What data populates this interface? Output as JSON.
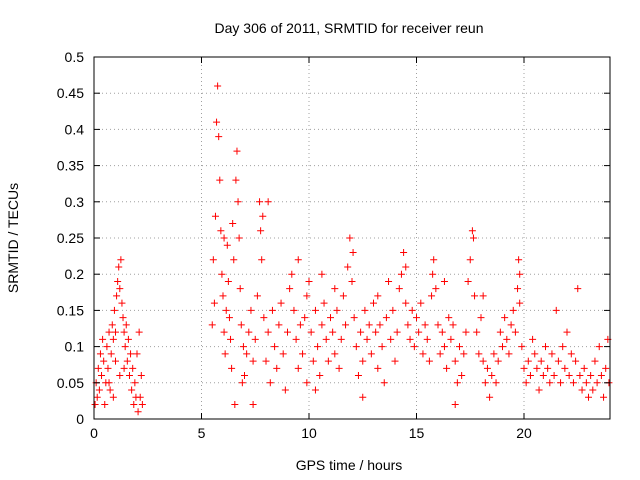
{
  "chart_data": {
    "type": "scatter",
    "title": "Day 306 of 2011, SRMTID for receiver reun",
    "xlabel": "GPS time / hours",
    "ylabel": "SRMTID / TECUs",
    "xlim": [
      0,
      24
    ],
    "ylim": [
      0,
      0.5
    ],
    "xticks": [
      0,
      5,
      10,
      15,
      20
    ],
    "xtick_labels": [
      "0",
      "5",
      "10",
      "15",
      "20"
    ],
    "yticks": [
      0,
      0.05,
      0.1,
      0.15,
      0.2,
      0.25,
      0.3,
      0.35,
      0.4,
      0.45,
      0.5
    ],
    "ytick_labels": [
      "0",
      "0.05",
      "0.1",
      "0.15",
      "0.2",
      "0.25",
      "0.3",
      "0.35",
      "0.4",
      "0.45",
      "0.5"
    ],
    "grid": true,
    "marker": "+",
    "marker_color": "#ff0000",
    "series": [
      {
        "name": "SRMTID",
        "points": [
          [
            0.05,
            0.02
          ],
          [
            0.1,
            0.05
          ],
          [
            0.15,
            0.03
          ],
          [
            0.2,
            0.07
          ],
          [
            0.25,
            0.04
          ],
          [
            0.3,
            0.09
          ],
          [
            0.35,
            0.06
          ],
          [
            0.4,
            0.11
          ],
          [
            0.45,
            0.08
          ],
          [
            0.5,
            0.02
          ],
          [
            0.55,
            0.05
          ],
          [
            0.6,
            0.1
          ],
          [
            0.65,
            0.07
          ],
          [
            0.7,
            0.12
          ],
          [
            0.75,
            0.04
          ],
          [
            0.8,
            0.09
          ],
          [
            0.85,
            0.13
          ],
          [
            0.9,
            0.11
          ],
          [
            0.95,
            0.15
          ],
          [
            1.0,
            0.12
          ],
          [
            1.05,
            0.17
          ],
          [
            1.1,
            0.19
          ],
          [
            1.15,
            0.21
          ],
          [
            1.2,
            0.18
          ],
          [
            1.25,
            0.22
          ],
          [
            1.3,
            0.16
          ],
          [
            1.35,
            0.14
          ],
          [
            1.4,
            0.12
          ],
          [
            1.45,
            0.1
          ],
          [
            1.5,
            0.13
          ],
          [
            1.55,
            0.08
          ],
          [
            1.6,
            0.11
          ],
          [
            1.65,
            0.06
          ],
          [
            1.7,
            0.09
          ],
          [
            1.75,
            0.04
          ],
          [
            1.8,
            0.07
          ],
          [
            1.85,
            0.02
          ],
          [
            1.9,
            0.05
          ],
          [
            1.95,
            0.03
          ],
          [
            2.0,
            0.09
          ],
          [
            2.05,
            0.01
          ],
          [
            2.1,
            0.12
          ],
          [
            2.15,
            0.03
          ],
          [
            2.2,
            0.06
          ],
          [
            2.25,
            0.02
          ],
          [
            1.0,
            0.08
          ],
          [
            1.2,
            0.06
          ],
          [
            0.9,
            0.03
          ],
          [
            0.7,
            0.05
          ],
          [
            1.4,
            0.07
          ],
          [
            5.5,
            0.13
          ],
          [
            5.55,
            0.22
          ],
          [
            5.6,
            0.16
          ],
          [
            5.65,
            0.28
          ],
          [
            5.7,
            0.41
          ],
          [
            5.75,
            0.46
          ],
          [
            5.8,
            0.39
          ],
          [
            5.85,
            0.33
          ],
          [
            5.9,
            0.26
          ],
          [
            5.95,
            0.2
          ],
          [
            6.0,
            0.17
          ],
          [
            6.05,
            0.12
          ],
          [
            6.1,
            0.09
          ],
          [
            6.15,
            0.15
          ],
          [
            6.2,
            0.24
          ],
          [
            6.25,
            0.19
          ],
          [
            6.3,
            0.14
          ],
          [
            6.35,
            0.11
          ],
          [
            6.4,
            0.07
          ],
          [
            6.45,
            0.27
          ],
          [
            6.5,
            0.22
          ],
          [
            6.55,
            0.02
          ],
          [
            6.6,
            0.33
          ],
          [
            6.65,
            0.37
          ],
          [
            6.7,
            0.3
          ],
          [
            6.75,
            0.25
          ],
          [
            6.8,
            0.18
          ],
          [
            6.85,
            0.13
          ],
          [
            6.9,
            0.05
          ],
          [
            6.95,
            0.1
          ],
          [
            7.0,
            0.06
          ],
          [
            7.1,
            0.09
          ],
          [
            7.2,
            0.12
          ],
          [
            7.3,
            0.15
          ],
          [
            7.4,
            0.08
          ],
          [
            7.5,
            0.11
          ],
          [
            7.6,
            0.17
          ],
          [
            7.7,
            0.3
          ],
          [
            7.75,
            0.26
          ],
          [
            7.8,
            0.22
          ],
          [
            7.9,
            0.14
          ],
          [
            8.0,
            0.08
          ],
          [
            8.1,
            0.12
          ],
          [
            8.2,
            0.05
          ],
          [
            8.3,
            0.15
          ],
          [
            8.4,
            0.1
          ],
          [
            8.5,
            0.07
          ],
          [
            8.6,
            0.13
          ],
          [
            8.7,
            0.16
          ],
          [
            8.8,
            0.09
          ],
          [
            8.9,
            0.04
          ],
          [
            9.0,
            0.12
          ],
          [
            9.1,
            0.18
          ],
          [
            9.2,
            0.2
          ],
          [
            9.3,
            0.15
          ],
          [
            9.4,
            0.11
          ],
          [
            9.5,
            0.07
          ],
          [
            9.6,
            0.13
          ],
          [
            9.7,
            0.09
          ],
          [
            9.8,
            0.14
          ],
          [
            9.9,
            0.17
          ],
          [
            10.0,
            0.19
          ],
          [
            10.1,
            0.12
          ],
          [
            10.2,
            0.08
          ],
          [
            10.3,
            0.15
          ],
          [
            10.4,
            0.1
          ],
          [
            10.5,
            0.06
          ],
          [
            10.6,
            0.13
          ],
          [
            10.7,
            0.16
          ],
          [
            10.8,
            0.11
          ],
          [
            10.9,
            0.08
          ],
          [
            11.0,
            0.14
          ],
          [
            11.1,
            0.12
          ],
          [
            11.2,
            0.09
          ],
          [
            11.3,
            0.15
          ],
          [
            11.4,
            0.07
          ],
          [
            11.5,
            0.11
          ],
          [
            11.6,
            0.17
          ],
          [
            11.7,
            0.13
          ],
          [
            11.8,
            0.21
          ],
          [
            11.9,
            0.25
          ],
          [
            12.0,
            0.19
          ],
          [
            12.1,
            0.14
          ],
          [
            12.2,
            0.1
          ],
          [
            12.3,
            0.06
          ],
          [
            12.4,
            0.12
          ],
          [
            12.5,
            0.08
          ],
          [
            12.6,
            0.15
          ],
          [
            12.7,
            0.11
          ],
          [
            12.8,
            0.13
          ],
          [
            12.9,
            0.09
          ],
          [
            13.0,
            0.16
          ],
          [
            13.1,
            0.12
          ],
          [
            13.2,
            0.07
          ],
          [
            13.3,
            0.13
          ],
          [
            13.4,
            0.1
          ],
          [
            13.5,
            0.05
          ],
          [
            13.6,
            0.14
          ],
          [
            13.7,
            0.19
          ],
          [
            13.8,
            0.11
          ],
          [
            13.9,
            0.15
          ],
          [
            14.0,
            0.08
          ],
          [
            14.1,
            0.12
          ],
          [
            14.2,
            0.18
          ],
          [
            14.3,
            0.2
          ],
          [
            14.4,
            0.23
          ],
          [
            14.5,
            0.16
          ],
          [
            14.6,
            0.13
          ],
          [
            14.7,
            0.11
          ],
          [
            14.8,
            0.15
          ],
          [
            14.9,
            0.1
          ],
          [
            15.0,
            0.14
          ],
          [
            15.1,
            0.12
          ],
          [
            15.2,
            0.16
          ],
          [
            15.3,
            0.09
          ],
          [
            15.4,
            0.13
          ],
          [
            15.5,
            0.11
          ],
          [
            15.6,
            0.08
          ],
          [
            15.7,
            0.17
          ],
          [
            15.8,
            0.22
          ],
          [
            15.9,
            0.18
          ],
          [
            16.0,
            0.13
          ],
          [
            16.1,
            0.09
          ],
          [
            16.2,
            0.12
          ],
          [
            16.3,
            0.1
          ],
          [
            16.4,
            0.07
          ],
          [
            16.5,
            0.14
          ],
          [
            16.6,
            0.11
          ],
          [
            16.7,
            0.13
          ],
          [
            16.8,
            0.08
          ],
          [
            16.9,
            0.05
          ],
          [
            17.0,
            0.1
          ],
          [
            17.1,
            0.06
          ],
          [
            17.2,
            0.09
          ],
          [
            17.3,
            0.12
          ],
          [
            17.4,
            0.19
          ],
          [
            17.5,
            0.22
          ],
          [
            17.6,
            0.26
          ],
          [
            17.65,
            0.25
          ],
          [
            17.7,
            0.17
          ],
          [
            17.8,
            0.12
          ],
          [
            17.9,
            0.09
          ],
          [
            18.0,
            0.14
          ],
          [
            18.1,
            0.08
          ],
          [
            18.2,
            0.05
          ],
          [
            18.3,
            0.07
          ],
          [
            18.4,
            0.03
          ],
          [
            18.5,
            0.06
          ],
          [
            18.6,
            0.09
          ],
          [
            18.7,
            0.05
          ],
          [
            18.8,
            0.08
          ],
          [
            18.9,
            0.12
          ],
          [
            19.0,
            0.1
          ],
          [
            19.1,
            0.14
          ],
          [
            19.2,
            0.11
          ],
          [
            19.3,
            0.09
          ],
          [
            19.4,
            0.13
          ],
          [
            19.5,
            0.15
          ],
          [
            19.6,
            0.12
          ],
          [
            19.7,
            0.18
          ],
          [
            19.75,
            0.22
          ],
          [
            19.8,
            0.16
          ],
          [
            19.9,
            0.1
          ],
          [
            20.0,
            0.07
          ],
          [
            20.1,
            0.05
          ],
          [
            20.2,
            0.08
          ],
          [
            20.3,
            0.06
          ],
          [
            20.4,
            0.11
          ],
          [
            20.5,
            0.09
          ],
          [
            20.6,
            0.07
          ],
          [
            20.7,
            0.04
          ],
          [
            20.8,
            0.08
          ],
          [
            20.9,
            0.06
          ],
          [
            21.0,
            0.1
          ],
          [
            21.1,
            0.07
          ],
          [
            21.2,
            0.05
          ],
          [
            21.3,
            0.09
          ],
          [
            21.4,
            0.06
          ],
          [
            21.5,
            0.15
          ],
          [
            21.6,
            0.08
          ],
          [
            21.7,
            0.05
          ],
          [
            21.8,
            0.1
          ],
          [
            21.9,
            0.07
          ],
          [
            22.0,
            0.12
          ],
          [
            22.1,
            0.06
          ],
          [
            22.2,
            0.09
          ],
          [
            22.3,
            0.05
          ],
          [
            22.4,
            0.08
          ],
          [
            22.5,
            0.18
          ],
          [
            22.6,
            0.06
          ],
          [
            22.7,
            0.04
          ],
          [
            22.8,
            0.07
          ],
          [
            22.9,
            0.05
          ],
          [
            23.0,
            0.03
          ],
          [
            23.1,
            0.06
          ],
          [
            23.2,
            0.04
          ],
          [
            23.3,
            0.08
          ],
          [
            23.4,
            0.05
          ],
          [
            23.5,
            0.1
          ],
          [
            23.6,
            0.06
          ],
          [
            23.7,
            0.03
          ],
          [
            23.8,
            0.07
          ],
          [
            23.9,
            0.11
          ],
          [
            23.95,
            0.05
          ],
          [
            8.1,
            0.3
          ],
          [
            7.85,
            0.28
          ],
          [
            6.05,
            0.25
          ],
          [
            9.5,
            0.22
          ],
          [
            12.05,
            0.23
          ],
          [
            14.5,
            0.21
          ],
          [
            15.75,
            0.2
          ],
          [
            16.3,
            0.19
          ],
          [
            19.8,
            0.2
          ],
          [
            11.2,
            0.18
          ],
          [
            13.2,
            0.17
          ],
          [
            10.6,
            0.2
          ],
          [
            18.1,
            0.17
          ],
          [
            9.9,
            0.05
          ],
          [
            12.5,
            0.03
          ],
          [
            16.8,
            0.02
          ],
          [
            10.3,
            0.04
          ],
          [
            7.4,
            0.02
          ]
        ]
      }
    ]
  }
}
